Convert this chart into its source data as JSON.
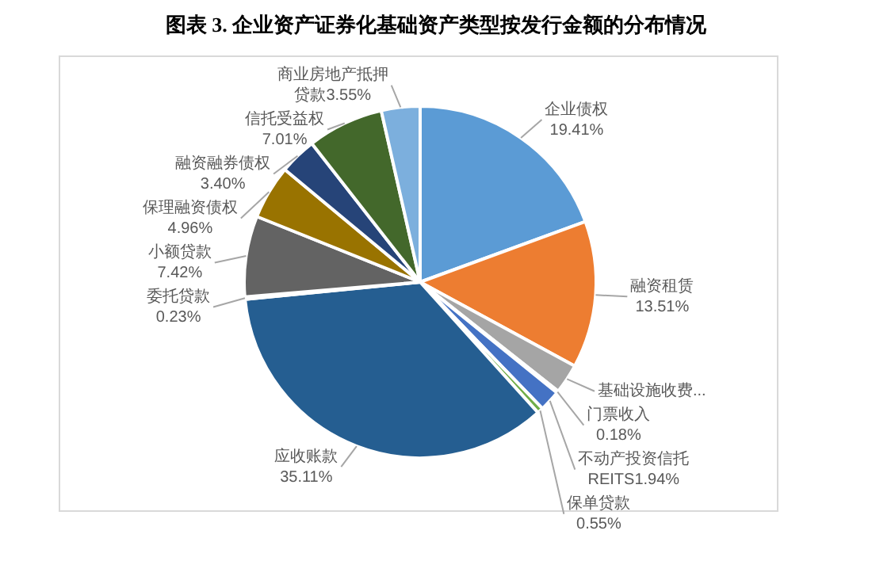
{
  "chart_data": {
    "type": "pie",
    "title": "图表 3.   企业资产证券化基础资产类型按发行金额的分布情况",
    "categories": [
      "企业债权",
      "融资租赁",
      "基础设施收费...",
      "门票收入",
      "不动产投资信托REITS",
      "保单贷款",
      "应收账款",
      "委托贷款",
      "小额贷款",
      "保理融资债权",
      "融资融券债权",
      "信托受益权",
      "商业房地产抵押贷款"
    ],
    "values": [
      19.41,
      13.51,
      2.73,
      0.18,
      1.94,
      0.55,
      35.11,
      0.23,
      7.42,
      4.96,
      3.4,
      7.01,
      3.55
    ],
    "value_labels": [
      "19.41%",
      "13.51%",
      null,
      "0.18%",
      "1.94%",
      "0.55%",
      "35.11%",
      "0.23%",
      "7.42%",
      "4.96%",
      "3.40%",
      "7.01%",
      "3.55%"
    ],
    "colors": [
      "#5b9bd5",
      "#ed7d31",
      "#a5a5a5",
      "#ffc000",
      "#4472c4",
      "#70ad47",
      "#255e91",
      "#9e480e",
      "#636363",
      "#997300",
      "#264478",
      "#43682b",
      "#7cafdd"
    ],
    "legend": false
  }
}
